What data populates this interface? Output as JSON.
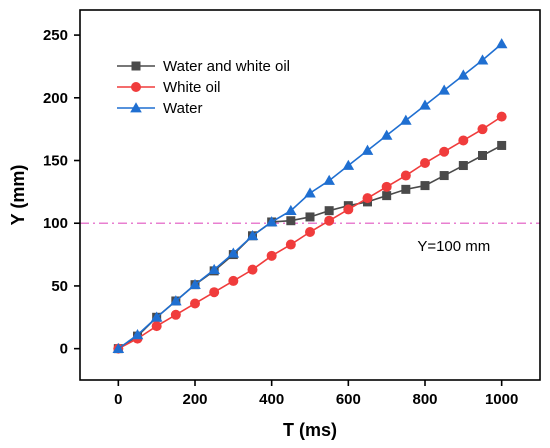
{
  "chart_data": {
    "type": "line",
    "xlabel": "T (ms)",
    "ylabel": "Y (mm)",
    "xlim": [
      -100,
      1100
    ],
    "ylim": [
      -25,
      270
    ],
    "xticks": [
      0,
      200,
      400,
      600,
      800,
      1000
    ],
    "yticks": [
      0,
      50,
      100,
      150,
      200,
      250
    ],
    "legend_position": "top-left",
    "grid": false,
    "reference_line": {
      "y": 100,
      "label": "Y=100 mm",
      "color": "#e87fd0"
    },
    "x": [
      0,
      50,
      100,
      150,
      200,
      250,
      300,
      350,
      400,
      450,
      500,
      550,
      600,
      650,
      700,
      750,
      800,
      850,
      900,
      950,
      1000
    ],
    "series": [
      {
        "name": "Water and white oil",
        "color": "#4a4a4a",
        "marker": "square",
        "values": [
          0,
          10,
          25,
          38,
          51,
          62,
          75,
          90,
          101,
          102,
          105,
          110,
          114,
          117,
          122,
          127,
          130,
          138,
          146,
          154,
          162
        ]
      },
      {
        "name": "White oil",
        "color": "#f03c3c",
        "marker": "circle",
        "values": [
          0,
          8,
          18,
          27,
          36,
          45,
          54,
          63,
          74,
          83,
          93,
          102,
          111,
          120,
          129,
          138,
          148,
          157,
          166,
          175,
          185
        ]
      },
      {
        "name": "Water",
        "color": "#1f6fd1",
        "marker": "triangle",
        "values": [
          0,
          11,
          25,
          38,
          51,
          63,
          76,
          90,
          101,
          110,
          124,
          134,
          146,
          158,
          170,
          182,
          194,
          206,
          218,
          230,
          243
        ]
      }
    ]
  }
}
